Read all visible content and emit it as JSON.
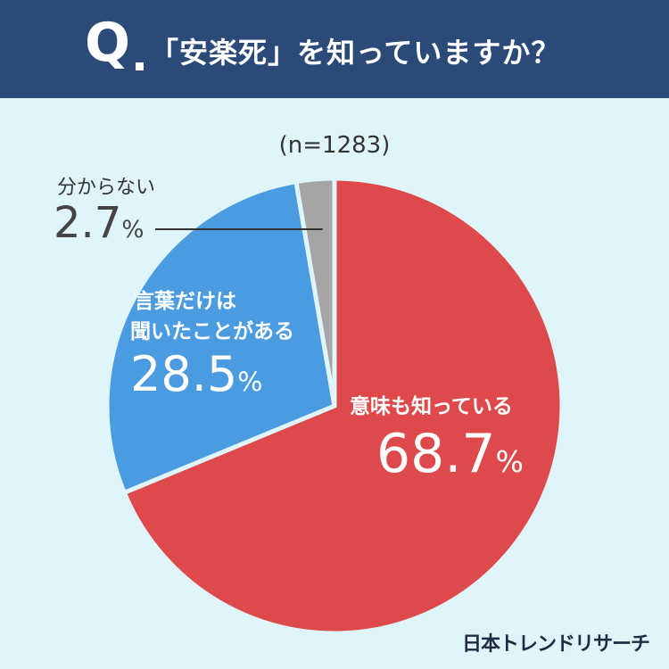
{
  "header": {
    "q_mark": "Q",
    "question": "「安楽死」を知っていますか？"
  },
  "sample_size": "(n=1283)",
  "chart_data": {
    "type": "pie",
    "title": "「安楽死」を知っていますか？",
    "slices": [
      {
        "label": "意味も知っている",
        "value": 68.7,
        "display": "68.7",
        "color": "#de4a4c"
      },
      {
        "label_lines": [
          "言葉だけは",
          "聞いたことがある"
        ],
        "label": "言葉だけは聞いたことがある",
        "value": 28.5,
        "display": "28.5",
        "color": "#4a9be0"
      },
      {
        "label": "分からない",
        "value": 2.7,
        "display": "2.7",
        "color": "#a5a5a5"
      }
    ],
    "unit": "%"
  },
  "credit": "日本トレンドリサーチ"
}
